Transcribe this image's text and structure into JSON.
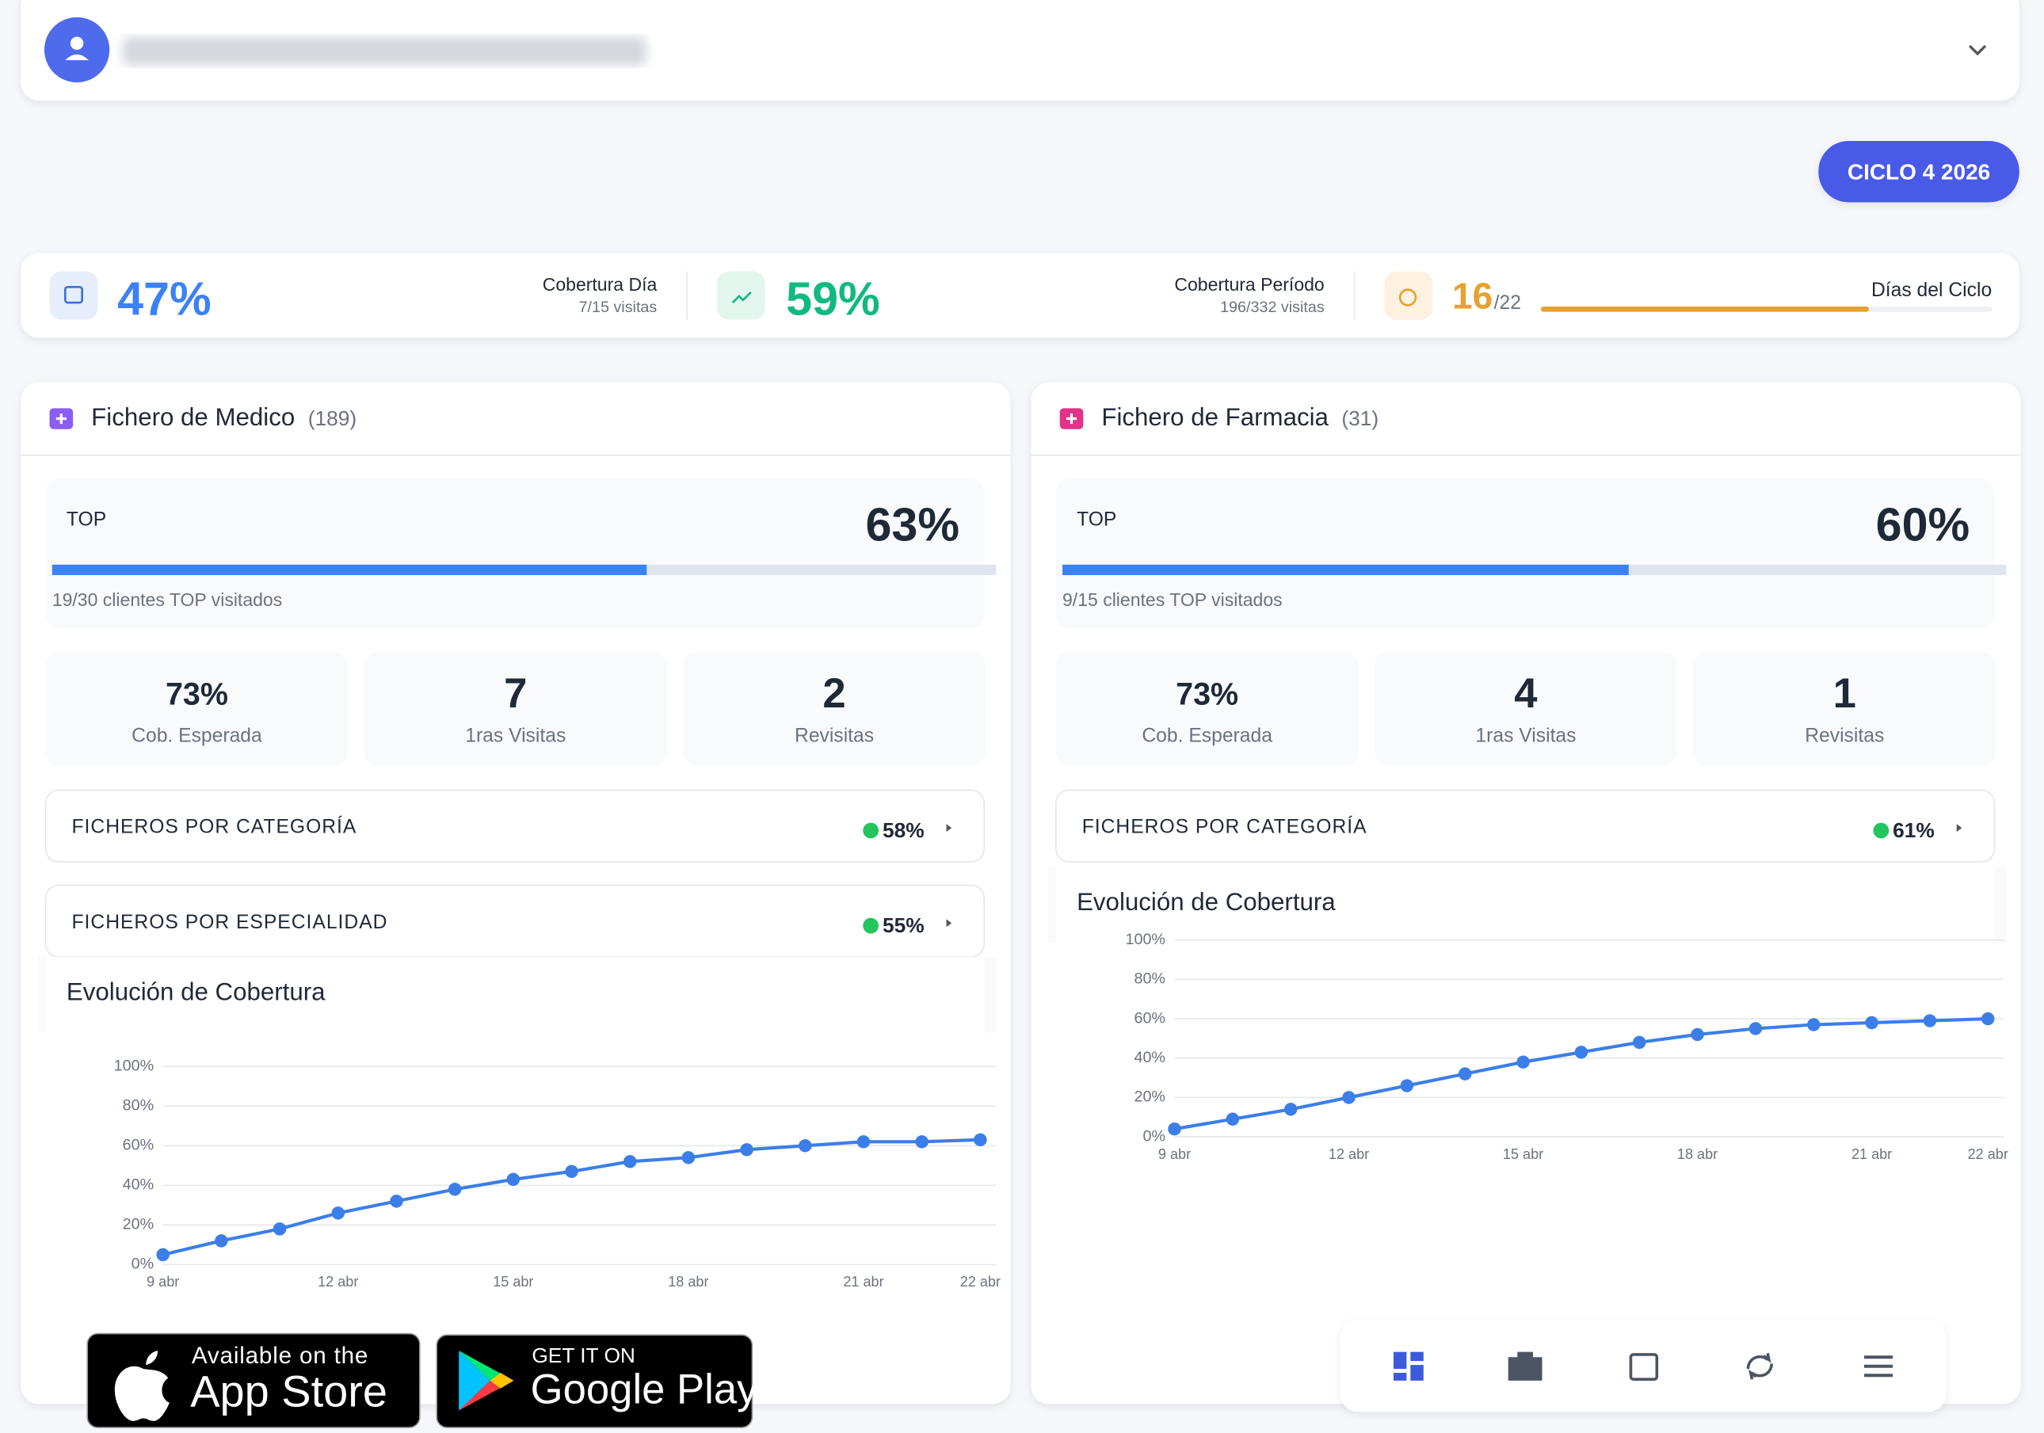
{
  "cycle_button": "CICLO 4 2026",
  "stats": {
    "day": {
      "value": "47%",
      "label": "Cobertura Día",
      "sub": "7/15 visitas"
    },
    "period": {
      "value": "59%",
      "label": "Cobertura Período",
      "sub": "196/332 visitas"
    },
    "cycle": {
      "days": 16,
      "days_total": {
        "value": 22,
        "label": "/22"
      },
      "label": "Días del Ciclo"
    }
  },
  "panels": [
    {
      "title": "Fichero de Medico",
      "count": "(189)",
      "top": {
        "label": "TOP",
        "value": 63,
        "value_label": "63%",
        "caption": "19/30 clientes TOP visitados"
      },
      "metrics": [
        {
          "value": "73%",
          "label": "Cob. Esperada"
        },
        {
          "value": "7",
          "label": "1ras Visitas"
        },
        {
          "value": "2",
          "label": "Revisitas"
        }
      ],
      "sections": [
        {
          "label": "FICHEROS POR CATEGORÍA",
          "value": "58%"
        },
        {
          "label": "FICHEROS POR ESPECIALIDAD",
          "value": "55%"
        }
      ],
      "chart_data": {
        "type": "line",
        "title": "Evolución de Cobertura",
        "color": "#3b7ee8",
        "categories": [
          "9 abr",
          null,
          null,
          "12 abr",
          null,
          null,
          "15 abr",
          null,
          null,
          "18 abr",
          null,
          null,
          "21 abr",
          null,
          "22 abr"
        ],
        "values": [
          5,
          12,
          18,
          26,
          32,
          38,
          43,
          47,
          52,
          54,
          58,
          60,
          62,
          62,
          63
        ],
        "ylim": [
          0,
          100
        ],
        "yticks": [
          {
            "value": 0,
            "label": "0%"
          },
          {
            "value": 20,
            "label": "20%"
          },
          {
            "value": 40,
            "label": "40%"
          },
          {
            "value": 60,
            "label": "60%"
          },
          {
            "value": 80,
            "label": "80%"
          },
          {
            "value": 100,
            "label": "100%"
          }
        ],
        "grid": true
      }
    },
    {
      "title": "Fichero de Farmacia",
      "count": "(31)",
      "top": {
        "label": "TOP",
        "value": 60,
        "value_label": "60%",
        "caption": "9/15 clientes TOP visitados"
      },
      "metrics": [
        {
          "value": "73%",
          "label": "Cob. Esperada"
        },
        {
          "value": "4",
          "label": "1ras Visitas"
        },
        {
          "value": "1",
          "label": "Revisitas"
        }
      ],
      "sections": [
        {
          "label": "FICHEROS POR CATEGORÍA",
          "value": "61%"
        }
      ],
      "chart_data": {
        "type": "line",
        "title": "Evolución de Cobertura",
        "color": "#3b7ee8",
        "categories": [
          "9 abr",
          null,
          null,
          "12 abr",
          null,
          null,
          "15 abr",
          null,
          null,
          "18 abr",
          null,
          null,
          "21 abr",
          null,
          "22 abr"
        ],
        "values": [
          4,
          9,
          14,
          20,
          26,
          32,
          38,
          43,
          48,
          52,
          55,
          57,
          58,
          59,
          60
        ],
        "ylim": [
          0,
          100
        ],
        "yticks": [
          {
            "value": 0,
            "label": "0%"
          },
          {
            "value": 20,
            "label": "20%"
          },
          {
            "value": 40,
            "label": "40%"
          },
          {
            "value": 60,
            "label": "60%"
          },
          {
            "value": 80,
            "label": "80%"
          },
          {
            "value": 100,
            "label": "100%"
          }
        ],
        "grid": true
      }
    }
  ],
  "badges": {
    "app_store": {
      "small": "Available on the",
      "big": "App Store"
    },
    "google_play": {
      "small": "GET IT ON",
      "big": "Google Play"
    }
  }
}
